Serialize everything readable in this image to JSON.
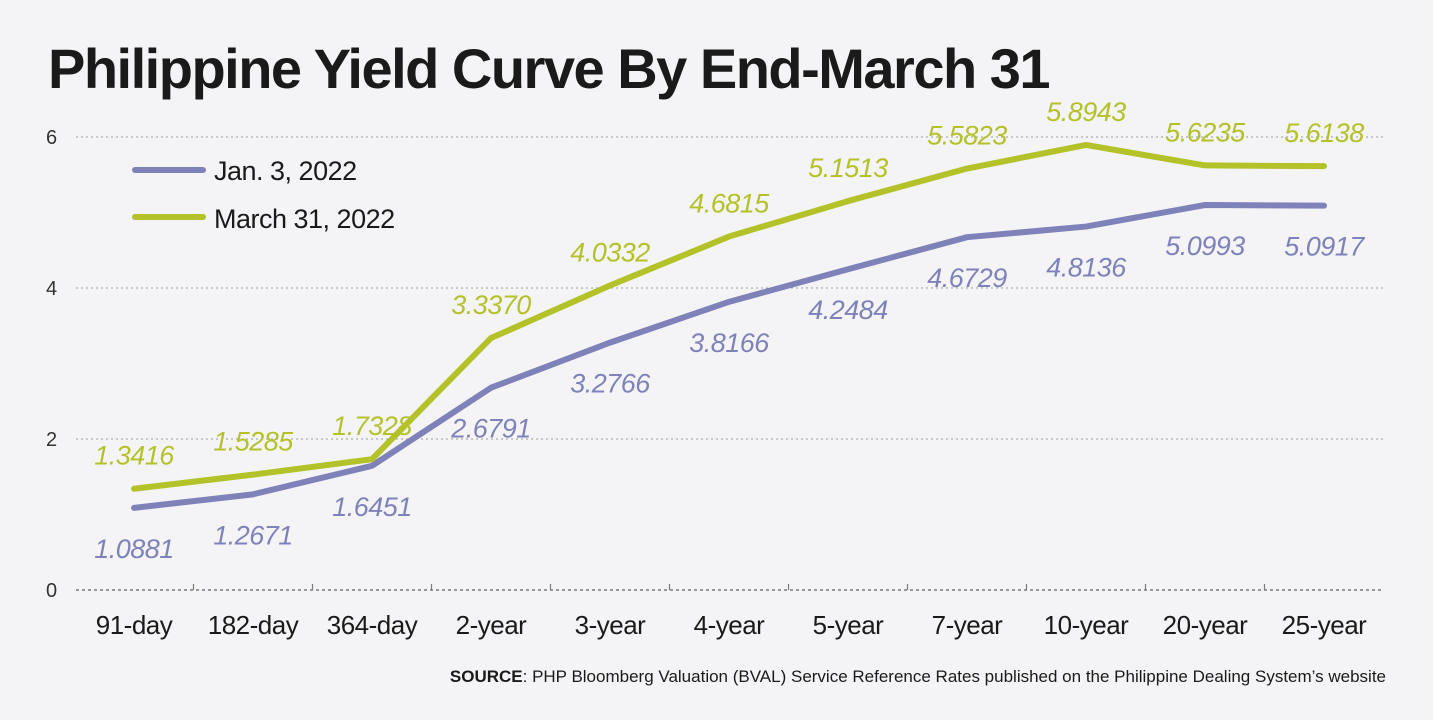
{
  "colors": {
    "jan": "#7f82b9",
    "march": "#b4c22a",
    "text": "#1a1a1a",
    "background": "#f4f4f6"
  },
  "source": {
    "label": "SOURCE",
    "text": ": PHP Bloomberg Valuation (BVAL) Service Reference Rates published on the Philippine Dealing System’s website"
  },
  "chart_data": {
    "type": "line",
    "title": "Philippine Yield Curve By End-March 31",
    "categories": [
      "91-day",
      "182-day",
      "364-day",
      "2-year",
      "3-year",
      "4-year",
      "5-year",
      "7-year",
      "10-year",
      "20-year",
      "25-year"
    ],
    "series": [
      {
        "name": "Jan. 3, 2022",
        "color": "#7f82b9",
        "values": [
          1.0881,
          1.2671,
          1.6451,
          2.6791,
          3.2766,
          3.8166,
          4.2484,
          4.6729,
          4.8136,
          5.0993,
          5.0917
        ],
        "labels": [
          "1.0881",
          "1.2671",
          "1.6451",
          "2.6791",
          "3.2766",
          "3.8166",
          "4.2484",
          "4.6729",
          "4.8136",
          "5.0993",
          "5.0917"
        ],
        "label_position": "below"
      },
      {
        "name": "March 31, 2022",
        "color": "#b4c22a",
        "values": [
          1.3416,
          1.5285,
          1.7328,
          3.337,
          4.0332,
          4.6815,
          5.1513,
          5.5823,
          5.8943,
          5.6235,
          5.6138
        ],
        "labels": [
          "1.3416",
          "1.5285",
          "1.7328",
          "3.3370",
          "4.0332",
          "4.6815",
          "5.1513",
          "5.5823",
          "5.8943",
          "5.6235",
          "5.6138"
        ],
        "label_position": "above"
      }
    ],
    "ylim": [
      0,
      6
    ],
    "yticks": [
      "0",
      "2",
      "4",
      "6"
    ],
    "grid": true,
    "legend_position": "top-left"
  }
}
